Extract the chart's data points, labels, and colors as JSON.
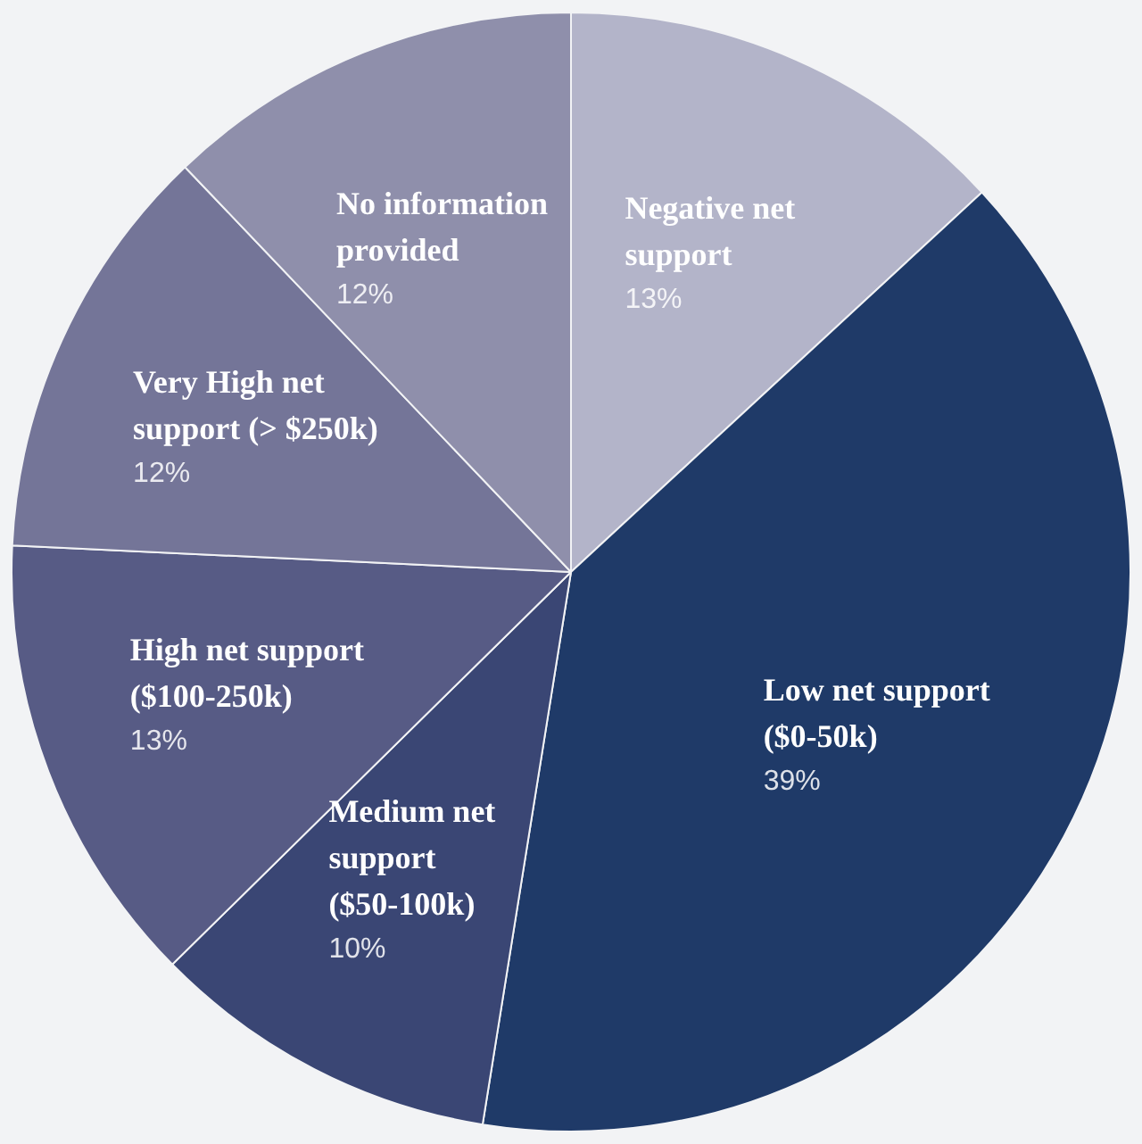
{
  "chart_data": {
    "type": "pie",
    "categories": [
      "Negative net support",
      "Low net support ($0-50k)",
      "Medium net support ($50-100k)",
      "High net support ($100-250k)",
      "Very High net support (> $250k)",
      "No information provided"
    ],
    "values": [
      13,
      39,
      10,
      13,
      12,
      12
    ],
    "value_labels": [
      "13%",
      "39%",
      "10%",
      "13%",
      "12%",
      "12%"
    ],
    "colors": [
      "#b3b4c9",
      "#1f3a68",
      "#3a4674",
      "#575b85",
      "#747598",
      "#8f8fab"
    ],
    "legend": false
  }
}
